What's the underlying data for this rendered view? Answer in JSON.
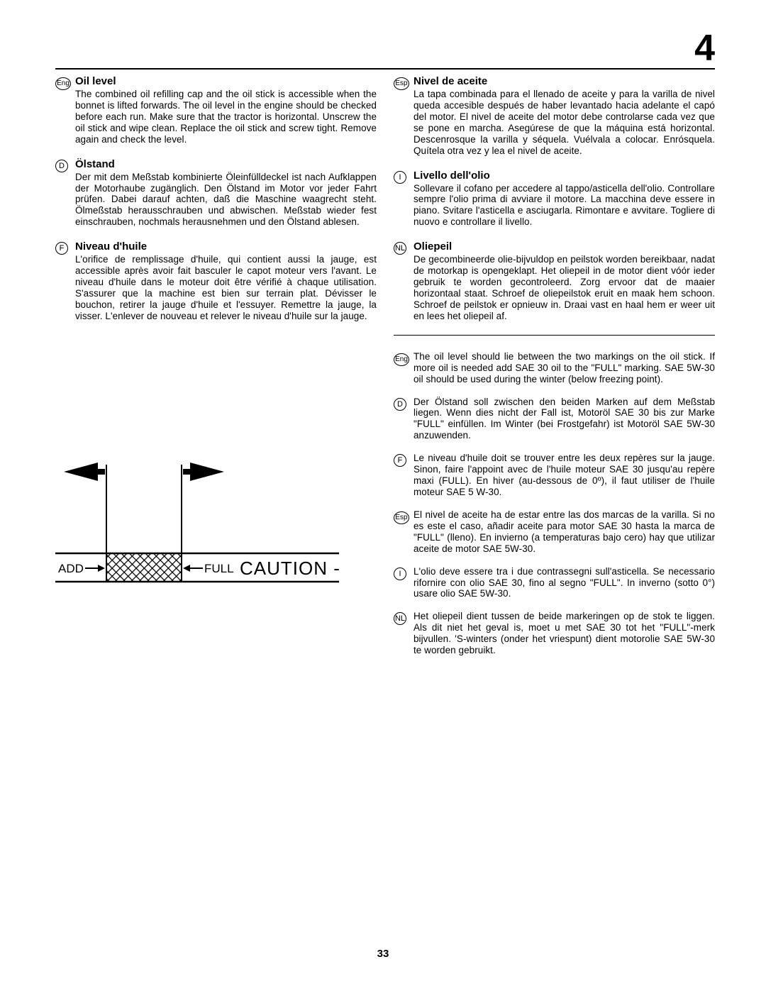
{
  "page_number_top": "4",
  "page_number_bottom": "33",
  "left_sections": [
    {
      "badge": "Eng",
      "title": "Oil level",
      "text": "The combined oil refilling cap and the oil stick is accessible when the bonnet is lifted forwards. The oil level in the engine should be checked before each run. Make sure that the tractor is horizontal. Unscrew the oil stick and wipe clean. Replace the oil stick and screw tight. Remove again and check the level."
    },
    {
      "badge": "D",
      "title": "Ölstand",
      "text": "Der mit dem Meßstab kombinierte Öleinfülldeckel ist nach Aufklappen der Motorhaube zugänglich. Den Ölstand im Motor vor jeder Fahrt prüfen. Dabei darauf achten, daß die Maschine waagrecht steht. Ölmeßstab herausschrauben und abwischen. Meßstab wieder fest einschrauben, nochmals herausnehmen und den Ölstand ablesen."
    },
    {
      "badge": "F",
      "title": "Niveau d'huile",
      "text": "L'orifice de remplissage d'huile, qui contient aussi la jauge, est accessible après avoir fait basculer le capot moteur vers l'avant. Le niveau d'huile dans le moteur doit être vérifié à chaque utilisation. S'assurer que la machine est bien sur terrain plat. Dévisser le bouchon, retirer la jauge d'huile et l'essuyer. Remettre la jauge, la visser. L'enlever de nouveau et relever le niveau d'huile sur la jauge."
    }
  ],
  "right_sections": [
    {
      "badge": "Esp",
      "title": "Nivel de aceite",
      "text": "La tapa combinada para el llenado de aceite y para la varilla de nivel queda accesible después de haber levantado hacia adelante el capó del motor. El nivel de aceite del motor debe controlarse cada vez que se pone en marcha. Asegúrese de que la máquina está horizontal. Descenrosque la varilla y séquela. Vuélvala a colocar. Enrósquela. Quítela otra vez y lea el nivel de aceite."
    },
    {
      "badge": "I",
      "title": "Livello dell'olio",
      "text": "Sollevare il cofano per accedere al tappo/asticella dell'olio. Controllare sempre l'olio prima di avviare il motore. La macchina deve essere in piano. Svitare l'asticella e asciugarla. Rimontare e avvitare. Togliere di nuovo e controllare il livello."
    },
    {
      "badge": "NL",
      "title": "Oliepeil",
      "text": "De gecombineerde olie-bijvuldop en peilstok worden bereikbaar, nadat de motorkap is opengeklapt. Het oliepeil in de motor dient vóór ieder gebruik te worden gecontroleerd. Zorg ervoor dat de maaier horizontaal staat. Schroef de oliepeilstok eruit en maak hem schoon. Schroef de peilstok er opnieuw in. Draai vast en haal hem er weer uit en lees het oliepeil af."
    }
  ],
  "lower_sections": [
    {
      "badge": "Eng",
      "text": "The oil level should lie between the two markings on the oil stick. If more oil is needed add SAE 30  oil to the \"FULL\" marking. SAE 5W-30 oil should be used during the winter (below freezing point)."
    },
    {
      "badge": "D",
      "text": "Der Ölstand soll zwischen den beiden Marken auf dem Meßstab liegen. Wenn dies nicht der Fall ist, Motoröl SAE 30 bis zur Marke \"FULL\" einfüllen. Im Winter (bei Frostgefahr) ist Motoröl SAE 5W-30 anzuwenden."
    },
    {
      "badge": "F",
      "text": "Le niveau d'huile doit se trouver entre les deux repères sur la jauge. Sinon, faire l'appoint avec de l'huile moteur SAE 30 jusqu'au repère maxi (FULL). En hiver (au-dessous de 0º), il faut utiliser de l'huile moteur SAE 5 W-30."
    },
    {
      "badge": "Esp",
      "text": "El nivel de aceite ha de estar entre las dos marcas de la varilla. Si no es este el caso, añadir aceite para motor SAE 30 hasta la marca de \"FULL\" (lleno). En invierno (a temperaturas bajo cero) hay que utilizar aceite de motor SAE 5W-30."
    },
    {
      "badge": "I",
      "text": "L'olio deve essere tra i due contrassegni sull'asticella. Se necessario rifornire con olio SAE 30, fino al segno \"FULL\". In inverno (sotto 0°) usare olio SAE 5W-30."
    },
    {
      "badge": "NL",
      "text": "Het oliepeil dient tussen de beide markeringen op de stok te liggen. Als dit niet het geval is, moet u met SAE 30 tot het \"FULL\"-merk bijvullen. 'S-winters (onder het vriespunt) dient motorolie SAE 5W-30 te worden gebruikt."
    }
  ],
  "diagram": {
    "label_add": "ADD",
    "label_full": "FULL",
    "label_caution": "CAUTION - DO"
  }
}
